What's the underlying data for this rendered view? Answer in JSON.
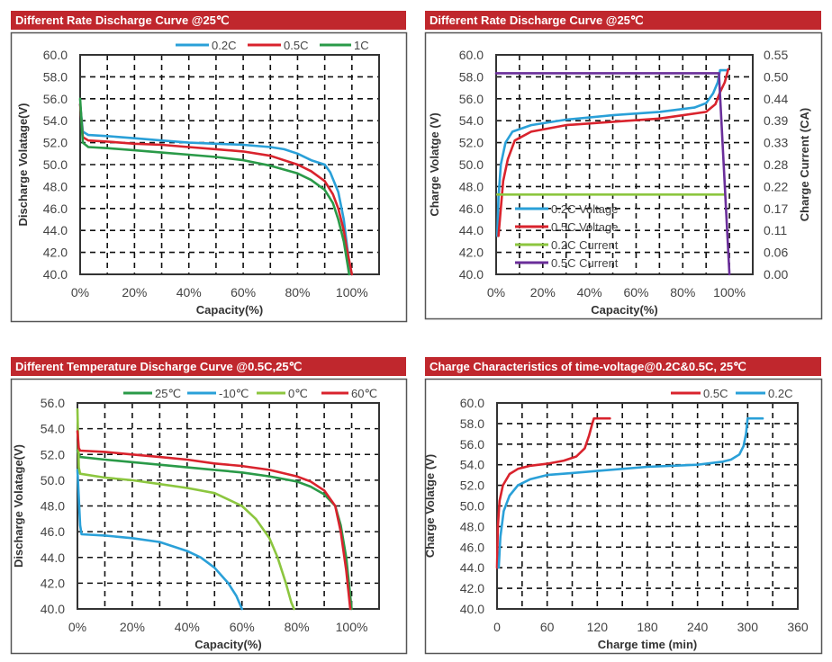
{
  "colors": {
    "title_bar": "#c0272d",
    "blue": "#2aa0d8",
    "red": "#d9232d",
    "green": "#2a9a48",
    "light_green": "#8cc63f",
    "purple": "#6a2e9a"
  },
  "chart_data": [
    {
      "type": "line",
      "title": "Different Rate Discharge Curve @25℃",
      "xlabel": "Capacity(%)",
      "ylabel": "Discharge Volatage(V)",
      "xlim": [
        0,
        110
      ],
      "ylim": [
        40,
        60
      ],
      "xticks": [
        0,
        20,
        40,
        60,
        80,
        100
      ],
      "xtick_labels": [
        "0%",
        "20%",
        "40%",
        "60%",
        "80%",
        "100%"
      ],
      "yticks": [
        40,
        42,
        44,
        46,
        48,
        50,
        52,
        54,
        56,
        58,
        60
      ],
      "ytick_labels": [
        "40.0",
        "42.0",
        "44.0",
        "46.0",
        "48.0",
        "50.0",
        "52.0",
        "54.0",
        "56.0",
        "58.0",
        "60.0"
      ],
      "grid": true,
      "legend": "top-right",
      "series": [
        {
          "name": "0.2C",
          "color": "#2aa0d8",
          "points": [
            [
              0,
              55.5
            ],
            [
              1,
              53
            ],
            [
              3,
              52.7
            ],
            [
              10,
              52.6
            ],
            [
              20,
              52.4
            ],
            [
              30,
              52.2
            ],
            [
              40,
              52
            ],
            [
              50,
              51.9
            ],
            [
              60,
              51.8
            ],
            [
              70,
              51.6
            ],
            [
              75,
              51.4
            ],
            [
              80,
              51
            ],
            [
              85,
              50.4
            ],
            [
              90,
              50
            ],
            [
              92,
              49.3
            ],
            [
              95,
              47.5
            ],
            [
              97,
              45
            ],
            [
              98,
              43
            ],
            [
              99,
              41
            ],
            [
              100,
              40
            ]
          ]
        },
        {
          "name": "0.5C",
          "color": "#d9232d",
          "points": [
            [
              0,
              55.5
            ],
            [
              1,
              52.5
            ],
            [
              3,
              52.2
            ],
            [
              10,
              52.1
            ],
            [
              20,
              51.9
            ],
            [
              30,
              51.8
            ],
            [
              40,
              51.6
            ],
            [
              50,
              51.4
            ],
            [
              60,
              51.2
            ],
            [
              70,
              50.8
            ],
            [
              80,
              50
            ],
            [
              85,
              49.4
            ],
            [
              90,
              48.5
            ],
            [
              93,
              47.3
            ],
            [
              95,
              46
            ],
            [
              97,
              44
            ],
            [
              98,
              42.5
            ],
            [
              100,
              40
            ]
          ]
        },
        {
          "name": "1C",
          "color": "#2a9a48",
          "points": [
            [
              0,
              56
            ],
            [
              1,
              52
            ],
            [
              3,
              51.6
            ],
            [
              10,
              51.5
            ],
            [
              20,
              51.3
            ],
            [
              30,
              51.1
            ],
            [
              40,
              50.9
            ],
            [
              50,
              50.7
            ],
            [
              60,
              50.4
            ],
            [
              70,
              49.9
            ],
            [
              80,
              49.2
            ],
            [
              85,
              48.6
            ],
            [
              90,
              47.7
            ],
            [
              93,
              46.5
            ],
            [
              95,
              45
            ],
            [
              97,
              43
            ],
            [
              98,
              41.5
            ],
            [
              99,
              40
            ]
          ]
        }
      ]
    },
    {
      "type": "line",
      "title": "Different Rate Discharge Curve @25℃",
      "xlabel": "Capacity(%)",
      "ylabel": "Charge Volatge (V)",
      "y2label": "Charge Current (CA)",
      "xlim": [
        0,
        110
      ],
      "ylim": [
        40,
        60
      ],
      "y2lim": [
        0,
        0.55
      ],
      "xticks": [
        0,
        20,
        40,
        60,
        80,
        100
      ],
      "xtick_labels": [
        "0%",
        "20%",
        "40%",
        "60%",
        "80%",
        "100%"
      ],
      "yticks": [
        40,
        42,
        44,
        46,
        48,
        50,
        52,
        54,
        56,
        58,
        60
      ],
      "ytick_labels": [
        "40.0",
        "42.0",
        "44.0",
        "46.0",
        "48.0",
        "50.0",
        "52.0",
        "54.0",
        "56.0",
        "58.0",
        "60.0"
      ],
      "y2tick_labels": [
        "0.00",
        "0.06",
        "0.11",
        "0.17",
        "0.22",
        "0.28",
        "0.33",
        "0.39",
        "0.44",
        "0.50",
        "0.55"
      ],
      "grid": true,
      "legend": "bottom-left",
      "series": [
        {
          "name": "0.2C Voltage",
          "color": "#2aa0d8",
          "axis": "left",
          "points": [
            [
              0.5,
              43.5
            ],
            [
              1,
              47
            ],
            [
              2,
              50
            ],
            [
              4,
              52
            ],
            [
              7,
              53
            ],
            [
              15,
              53.6
            ],
            [
              30,
              54.1
            ],
            [
              50,
              54.5
            ],
            [
              70,
              54.8
            ],
            [
              85,
              55.2
            ],
            [
              90,
              55.6
            ],
            [
              93,
              56.5
            ],
            [
              95,
              57.5
            ],
            [
              96,
              58.6
            ],
            [
              99,
              58.6
            ]
          ]
        },
        {
          "name": "0.5C Voltage",
          "color": "#d9232d",
          "axis": "left",
          "points": [
            [
              1,
              43.5
            ],
            [
              2,
              46
            ],
            [
              3,
              48.5
            ],
            [
              5,
              50.5
            ],
            [
              8,
              52.2
            ],
            [
              15,
              53
            ],
            [
              30,
              53.6
            ],
            [
              50,
              53.9
            ],
            [
              70,
              54.2
            ],
            [
              90,
              54.8
            ],
            [
              94,
              55.5
            ],
            [
              96,
              56.6
            ],
            [
              98,
              57.5
            ],
            [
              99.5,
              58.7
            ]
          ]
        },
        {
          "name": "0.2C Current",
          "color": "#8cc63f",
          "axis": "right",
          "points": [
            [
              0.5,
              0.2
            ],
            [
              98,
              0.2
            ]
          ]
        },
        {
          "name": "0.5C Current",
          "color": "#6a2e9a",
          "axis": "right",
          "points": [
            [
              0,
              0.504
            ],
            [
              95.5,
              0.504
            ],
            [
              100,
              0.0
            ]
          ]
        }
      ]
    },
    {
      "type": "line",
      "title": "Different Temperature Discharge Curve @0.5C,25℃",
      "xlabel": "Capacity(%)",
      "ylabel": "Discharge Volatage(V)",
      "xlim": [
        0,
        110
      ],
      "ylim": [
        40,
        56
      ],
      "xticks": [
        0,
        20,
        40,
        60,
        80,
        100
      ],
      "xtick_labels": [
        "0%",
        "20%",
        "40%",
        "60%",
        "80%",
        "100%"
      ],
      "yticks": [
        40,
        42,
        44,
        46,
        48,
        50,
        52,
        54,
        56
      ],
      "ytick_labels": [
        "40.0",
        "42.0",
        "44.0",
        "46.0",
        "48.0",
        "50.0",
        "52.0",
        "54.0",
        "56.0"
      ],
      "grid": true,
      "legend": "top",
      "series": [
        {
          "name": "25℃",
          "color": "#2a9a48",
          "points": [
            [
              0,
              52.3
            ],
            [
              1,
              51.8
            ],
            [
              10,
              51.6
            ],
            [
              20,
              51.4
            ],
            [
              30,
              51.2
            ],
            [
              40,
              51
            ],
            [
              50,
              50.8
            ],
            [
              60,
              50.6
            ],
            [
              70,
              50.3
            ],
            [
              80,
              49.9
            ],
            [
              85,
              49.5
            ],
            [
              90,
              48.9
            ],
            [
              94,
              48
            ],
            [
              96,
              46.5
            ],
            [
              98,
              44
            ],
            [
              99,
              42
            ],
            [
              100,
              40
            ]
          ]
        },
        {
          "name": "-10℃",
          "color": "#2aa0d8",
          "points": [
            [
              0,
              50.8
            ],
            [
              1,
              46.5
            ],
            [
              1.5,
              45.8
            ],
            [
              10,
              45.7
            ],
            [
              20,
              45.5
            ],
            [
              30,
              45.2
            ],
            [
              40,
              44.5
            ],
            [
              45,
              44
            ],
            [
              50,
              43.2
            ],
            [
              55,
              42
            ],
            [
              58,
              41
            ],
            [
              60,
              40
            ]
          ]
        },
        {
          "name": "0℃",
          "color": "#8cc63f",
          "points": [
            [
              0,
              55.5
            ],
            [
              0.5,
              51
            ],
            [
              1,
              50.5
            ],
            [
              10,
              50.2
            ],
            [
              20,
              50
            ],
            [
              30,
              49.7
            ],
            [
              40,
              49.4
            ],
            [
              50,
              49
            ],
            [
              55,
              48.5
            ],
            [
              60,
              48
            ],
            [
              65,
              47
            ],
            [
              70,
              45.5
            ],
            [
              73,
              44
            ],
            [
              76,
              42
            ],
            [
              78,
              40.5
            ],
            [
              79,
              40
            ]
          ]
        },
        {
          "name": "60℃",
          "color": "#d9232d",
          "points": [
            [
              0,
              53.8
            ],
            [
              0.5,
              52.5
            ],
            [
              1,
              52.3
            ],
            [
              10,
              52.2
            ],
            [
              20,
              52
            ],
            [
              30,
              51.8
            ],
            [
              40,
              51.6
            ],
            [
              50,
              51.3
            ],
            [
              60,
              51.1
            ],
            [
              70,
              50.8
            ],
            [
              80,
              50.3
            ],
            [
              85,
              49.9
            ],
            [
              90,
              49.2
            ],
            [
              94,
              48
            ],
            [
              96,
              46
            ],
            [
              98,
              43
            ],
            [
              99.5,
              40
            ]
          ]
        }
      ]
    },
    {
      "type": "line",
      "title": "Charge Characteristics of time-voltage@0.2C&0.5C, 25℃",
      "xlabel": "Charge time (min)",
      "ylabel": "Charge Volatge (V)",
      "xlim": [
        0,
        360
      ],
      "ylim": [
        40,
        60
      ],
      "xticks": [
        0,
        60,
        120,
        180,
        240,
        300,
        360
      ],
      "xtick_labels": [
        "0",
        "60",
        "120",
        "180",
        "240",
        "300",
        "360"
      ],
      "xgrid_step": 30,
      "yticks": [
        40,
        42,
        44,
        46,
        48,
        50,
        52,
        54,
        56,
        58,
        60
      ],
      "ytick_labels": [
        "40.0",
        "42.0",
        "44.0",
        "46.0",
        "48.0",
        "50.0",
        "52.0",
        "54.0",
        "56.0",
        "58.0",
        "60.0"
      ],
      "grid": true,
      "legend": "top-right",
      "series": [
        {
          "name": "0.5C",
          "color": "#d9232d",
          "points": [
            [
              0,
              44
            ],
            [
              1,
              48
            ],
            [
              3,
              50.5
            ],
            [
              7,
              52
            ],
            [
              15,
              53.1
            ],
            [
              25,
              53.6
            ],
            [
              40,
              53.9
            ],
            [
              60,
              54.1
            ],
            [
              80,
              54.4
            ],
            [
              95,
              54.8
            ],
            [
              105,
              55.6
            ],
            [
              110,
              56.8
            ],
            [
              114,
              58
            ],
            [
              116,
              58.5
            ],
            [
              135,
              58.5
            ]
          ]
        },
        {
          "name": "0.2C",
          "color": "#2aa0d8",
          "points": [
            [
              2,
              44
            ],
            [
              4,
              47
            ],
            [
              8,
              49.5
            ],
            [
              15,
              51
            ],
            [
              25,
              52
            ],
            [
              40,
              52.6
            ],
            [
              60,
              53
            ],
            [
              90,
              53.2
            ],
            [
              120,
              53.4
            ],
            [
              180,
              53.8
            ],
            [
              240,
              54
            ],
            [
              270,
              54.3
            ],
            [
              280,
              54.5
            ],
            [
              290,
              55
            ],
            [
              295,
              55.8
            ],
            [
              298,
              57
            ],
            [
              300,
              58.5
            ],
            [
              318,
              58.5
            ]
          ]
        }
      ]
    }
  ]
}
